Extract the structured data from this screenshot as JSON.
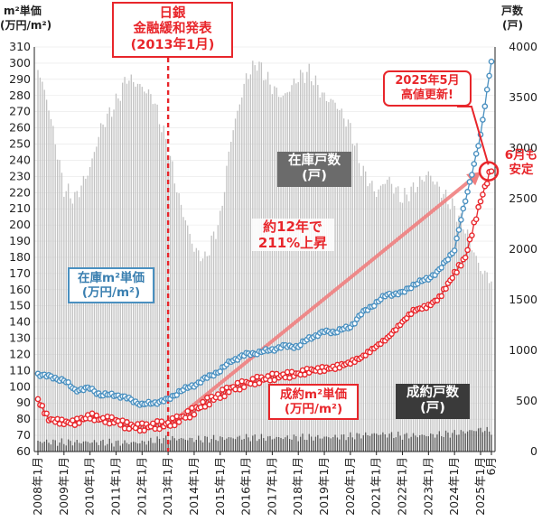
{
  "chart_data": {
    "type": "bar+line",
    "title": "",
    "left_axis": {
      "title_line1": "m²単価",
      "title_line2": "(万円/m²)",
      "range": [
        60,
        310
      ],
      "step": 10
    },
    "right_axis": {
      "title_line1": "戸数",
      "title_line2": "(戸)",
      "range": [
        0,
        4000
      ],
      "step": 500
    },
    "x_labels": [
      "2008年1月",
      "2009年1月",
      "2010年1月",
      "2011年1月",
      "2012年1月",
      "2013年1月",
      "2014年1月",
      "2015年1月",
      "2016年1月",
      "2017年1月",
      "2018年1月",
      "2019年1月",
      "2020年1月",
      "2021年1月",
      "2022年1月",
      "2023年1月",
      "2024年1月",
      "2025年1月",
      "6月"
    ],
    "x_range": [
      "2008-01",
      "2025-06"
    ],
    "series": [
      {
        "name": "在庫m²単価 (万円/m²)",
        "axis": "left",
        "kind": "line",
        "color": "#4a90c0",
        "points": [
          [
            "2008-01",
            108
          ],
          [
            "2009-01",
            104
          ],
          [
            "2009-06",
            98
          ],
          [
            "2010-01",
            99
          ],
          [
            "2010-06",
            95
          ],
          [
            "2011-01",
            95
          ],
          [
            "2011-06",
            93
          ],
          [
            "2012-01",
            89
          ],
          [
            "2012-06",
            90
          ],
          [
            "2013-01",
            92
          ],
          [
            "2013-06",
            97
          ],
          [
            "2014-01",
            101
          ],
          [
            "2014-06",
            105
          ],
          [
            "2015-01",
            110
          ],
          [
            "2015-06",
            116
          ],
          [
            "2016-01",
            120
          ],
          [
            "2016-06",
            121
          ],
          [
            "2017-01",
            123
          ],
          [
            "2017-06",
            125
          ],
          [
            "2018-01",
            125
          ],
          [
            "2018-06",
            130
          ],
          [
            "2019-01",
            134
          ],
          [
            "2019-06",
            134
          ],
          [
            "2020-01",
            137
          ],
          [
            "2020-06",
            145
          ],
          [
            "2021-01",
            152
          ],
          [
            "2021-06",
            157
          ],
          [
            "2022-01",
            158
          ],
          [
            "2022-06",
            163
          ],
          [
            "2023-01",
            167
          ],
          [
            "2023-06",
            172
          ],
          [
            "2024-01",
            185
          ],
          [
            "2024-06",
            215
          ],
          [
            "2025-01",
            255
          ],
          [
            "2025-06",
            302
          ]
        ]
      },
      {
        "name": "成約m²単価 (万円/m²)",
        "axis": "left",
        "kind": "line",
        "color": "#e8262b",
        "points": [
          [
            "2008-01",
            92
          ],
          [
            "2008-06",
            80
          ],
          [
            "2009-01",
            78
          ],
          [
            "2009-06",
            78
          ],
          [
            "2010-01",
            82
          ],
          [
            "2010-06",
            80
          ],
          [
            "2011-01",
            79
          ],
          [
            "2011-06",
            76
          ],
          [
            "2012-01",
            75
          ],
          [
            "2012-06",
            76
          ],
          [
            "2013-01",
            77
          ],
          [
            "2013-06",
            80
          ],
          [
            "2014-01",
            85
          ],
          [
            "2014-06",
            90
          ],
          [
            "2015-01",
            95
          ],
          [
            "2015-06",
            99
          ],
          [
            "2016-01",
            102
          ],
          [
            "2016-06",
            104
          ],
          [
            "2017-01",
            106
          ],
          [
            "2017-06",
            107
          ],
          [
            "2018-01",
            108
          ],
          [
            "2018-06",
            110
          ],
          [
            "2019-01",
            111
          ],
          [
            "2019-06",
            112
          ],
          [
            "2020-01",
            115
          ],
          [
            "2020-06",
            118
          ],
          [
            "2021-01",
            125
          ],
          [
            "2021-06",
            130
          ],
          [
            "2022-01",
            140
          ],
          [
            "2022-06",
            147
          ],
          [
            "2023-01",
            150
          ],
          [
            "2023-06",
            155
          ],
          [
            "2024-01",
            170
          ],
          [
            "2024-06",
            180
          ],
          [
            "2025-01",
            215
          ],
          [
            "2025-06",
            235
          ]
        ]
      },
      {
        "name": "在庫戸数 (戸)",
        "axis": "right",
        "kind": "bar",
        "color": "#c2c2c2",
        "points": [
          [
            "2008-01",
            3800
          ],
          [
            "2008-06",
            3400
          ],
          [
            "2009-01",
            2600
          ],
          [
            "2009-06",
            2500
          ],
          [
            "2010-01",
            2800
          ],
          [
            "2010-06",
            3200
          ],
          [
            "2011-01",
            3450
          ],
          [
            "2011-06",
            3700
          ],
          [
            "2012-01",
            3600
          ],
          [
            "2012-06",
            3500
          ],
          [
            "2013-01",
            3000
          ],
          [
            "2013-06",
            2500
          ],
          [
            "2014-01",
            2000
          ],
          [
            "2014-06",
            1900
          ],
          [
            "2015-01",
            2300
          ],
          [
            "2015-06",
            3100
          ],
          [
            "2016-01",
            3700
          ],
          [
            "2016-06",
            3850
          ],
          [
            "2017-01",
            3600
          ],
          [
            "2017-06",
            3500
          ],
          [
            "2018-01",
            3700
          ],
          [
            "2018-06",
            3750
          ],
          [
            "2019-01",
            3500
          ],
          [
            "2019-06",
            3450
          ],
          [
            "2020-01",
            3200
          ],
          [
            "2020-06",
            2800
          ],
          [
            "2021-01",
            2550
          ],
          [
            "2021-06",
            2700
          ],
          [
            "2022-01",
            2500
          ],
          [
            "2022-06",
            2600
          ],
          [
            "2023-01",
            2750
          ],
          [
            "2023-06",
            2600
          ],
          [
            "2024-01",
            2400
          ],
          [
            "2024-06",
            2200
          ],
          [
            "2025-01",
            1800
          ],
          [
            "2025-06",
            1700
          ]
        ]
      },
      {
        "name": "成約戸数 (戸)",
        "axis": "right",
        "kind": "bar",
        "color": "#555555",
        "points": [
          [
            "2008-01",
            100
          ],
          [
            "2009-01",
            90
          ],
          [
            "2010-01",
            95
          ],
          [
            "2011-01",
            85
          ],
          [
            "2012-01",
            90
          ],
          [
            "2013-01",
            130
          ],
          [
            "2014-01",
            120
          ],
          [
            "2015-01",
            130
          ],
          [
            "2016-01",
            140
          ],
          [
            "2017-01",
            135
          ],
          [
            "2018-01",
            140
          ],
          [
            "2019-01",
            140
          ],
          [
            "2020-01",
            150
          ],
          [
            "2021-01",
            175
          ],
          [
            "2022-01",
            155
          ],
          [
            "2023-01",
            160
          ],
          [
            "2024-01",
            180
          ],
          [
            "2025-01",
            220
          ],
          [
            "2025-06",
            200
          ]
        ]
      }
    ],
    "annotations": {
      "boj": {
        "line1": "日銀",
        "line2": "金融緩和発表",
        "line3": "(2013年1月)",
        "x": "2013-01"
      },
      "trend": {
        "line1": "約12年で",
        "line2": "211%上昇",
        "from": [
          "2013-01",
          76
        ],
        "to": [
          "2025-06",
          235
        ]
      },
      "peak": {
        "line1": "2025年5月",
        "line2": "高値更新!"
      },
      "june": {
        "line1": "6月も",
        "line2": "安定"
      },
      "inv_units": {
        "line1": "在庫戸数",
        "line2": "(戸)"
      },
      "sold_units": {
        "line1": "成約戸数",
        "line2": "(戸)"
      },
      "inv_price": {
        "line1": "在庫m²単価",
        "line2": "(万円/m²)"
      },
      "sold_price": {
        "line1": "成約m²単価",
        "line2": "(万円/m²)"
      }
    },
    "colors": {
      "inventory_price": "#4a90c0",
      "sold_price": "#e8262b",
      "inventory_units": "#c2c2c2",
      "sold_units": "#555555",
      "trend_arrow": "#f08080",
      "accent_red": "#e8262b",
      "label_dark": "#6b6b6b",
      "label_darker": "#3a3a3a"
    }
  }
}
